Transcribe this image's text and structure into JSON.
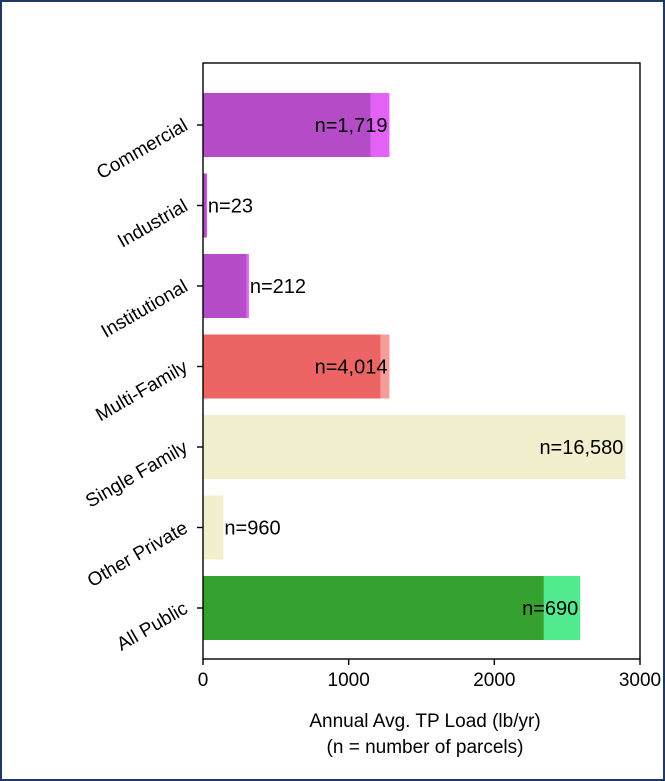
{
  "chart_data": {
    "type": "bar",
    "orientation": "horizontal",
    "stacked": true,
    "xlabel": "Annual Avg. TP Load (lb/yr)",
    "xlabel_note": "(n = number of parcels)",
    "ylabel": "",
    "xlim": [
      0,
      3000
    ],
    "xticks": [
      0,
      1000,
      2000,
      3000
    ],
    "grid": false,
    "categories": [
      "Commercial",
      "Industrial",
      "Institutional",
      "Multi-Family",
      "Single Family",
      "Other Private",
      "All Public"
    ],
    "annotations": [
      "n=1,719",
      "n=23",
      "n=212",
      "n=4,014",
      "n=16,580",
      "n=960",
      "n=690"
    ],
    "series": [
      {
        "values": [
          1150,
          25,
          300,
          1220,
          2900,
          130,
          2340
        ],
        "colors": [
          "#b44cc8",
          "#b44cc8",
          "#b44cc8",
          "#ec6464",
          "#f1efcd",
          "#f1efcd",
          "#35a12e"
        ]
      },
      {
        "values": [
          130,
          2,
          15,
          60,
          0,
          10,
          250
        ],
        "colors": [
          "#e462f5",
          "#e462f5",
          "#e462f5",
          "#f59d98",
          "#f1efcd",
          "#f1efcd",
          "#52ea8f"
        ]
      }
    ]
  }
}
